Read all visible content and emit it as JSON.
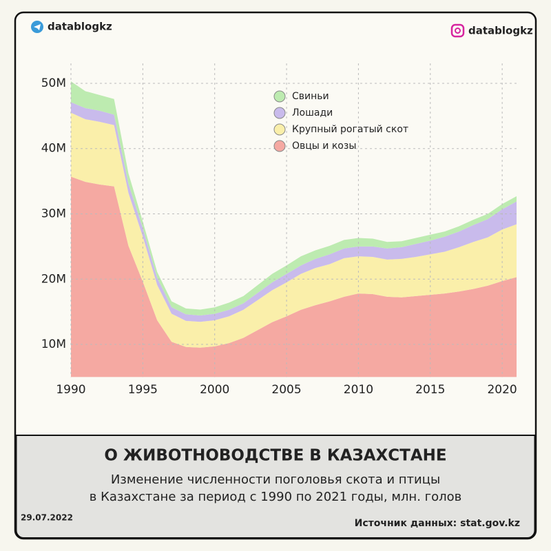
{
  "header": {
    "left": "datablogkz",
    "right": "datablogkz"
  },
  "chart_data": {
    "type": "stacked-area",
    "x": [
      1990,
      1991,
      1992,
      1993,
      1994,
      1995,
      1996,
      1997,
      1998,
      1999,
      2000,
      2001,
      2002,
      2003,
      2004,
      2005,
      2006,
      2007,
      2008,
      2009,
      2010,
      2011,
      2012,
      2013,
      2014,
      2015,
      2016,
      2017,
      2018,
      2019,
      2020,
      2021
    ],
    "series": [
      {
        "name": "Овцы и козы",
        "color": "#f5a9a2",
        "values": [
          35.7,
          34.9,
          34.5,
          34.2,
          25.1,
          19.6,
          13.7,
          10.4,
          9.6,
          9.5,
          9.7,
          10.2,
          11.0,
          12.2,
          13.4,
          14.3,
          15.3,
          16.0,
          16.6,
          17.3,
          17.8,
          17.7,
          17.3,
          17.2,
          17.4,
          17.6,
          17.8,
          18.1,
          18.5,
          19.0,
          19.7,
          20.3
        ]
      },
      {
        "name": "Крупный рогатый скот",
        "color": "#faefaa",
        "values": [
          9.8,
          9.6,
          9.6,
          9.4,
          8.1,
          6.9,
          5.4,
          4.3,
          4.0,
          3.96,
          4.0,
          4.1,
          4.3,
          4.6,
          4.9,
          5.2,
          5.5,
          5.7,
          5.7,
          5.9,
          5.7,
          5.7,
          5.7,
          5.9,
          6.0,
          6.2,
          6.4,
          6.8,
          7.2,
          7.4,
          7.9,
          8.1
        ]
      },
      {
        "name": "Лошади",
        "color": "#c9bbec",
        "values": [
          1.6,
          1.7,
          1.7,
          1.6,
          1.4,
          1.3,
          1.1,
          1.0,
          1.0,
          0.97,
          0.98,
          1.0,
          1.0,
          1.1,
          1.2,
          1.3,
          1.3,
          1.4,
          1.5,
          1.5,
          1.5,
          1.6,
          1.7,
          1.8,
          2.0,
          2.1,
          2.3,
          2.4,
          2.6,
          2.8,
          3.1,
          3.5
        ]
      },
      {
        "name": "Свиньи",
        "color": "#bdebb0",
        "values": [
          3.2,
          2.6,
          2.4,
          2.4,
          1.6,
          1.0,
          0.9,
          0.9,
          0.9,
          0.9,
          1.0,
          1.1,
          1.1,
          1.2,
          1.3,
          1.3,
          1.4,
          1.3,
          1.3,
          1.3,
          1.3,
          1.2,
          1.0,
          0.9,
          0.9,
          0.9,
          0.8,
          0.8,
          0.8,
          0.8,
          0.8,
          0.8
        ]
      }
    ],
    "xlim": [
      1990,
      2021
    ],
    "xticks": [
      1990,
      1995,
      2000,
      2005,
      2010,
      2015,
      2020
    ],
    "ylim": [
      5,
      52
    ],
    "yticks": [
      {
        "value": 10,
        "label": "10M"
      },
      {
        "value": 20,
        "label": "20M"
      },
      {
        "value": 30,
        "label": "30M"
      },
      {
        "value": 40,
        "label": "40M"
      },
      {
        "value": 50,
        "label": "50M"
      }
    ],
    "grid": true
  },
  "footer": {
    "title": "О ЖИВОТНОВОДСТВЕ В КАЗАХСТАНЕ",
    "subtitle": [
      "Изменение численности поголовья скота и птицы",
      "в Казахстане за период с 1990 по 2021 годы, млн. голов"
    ],
    "date": "29.07.2022",
    "source": "Источник данных: stat.gov.kz"
  }
}
